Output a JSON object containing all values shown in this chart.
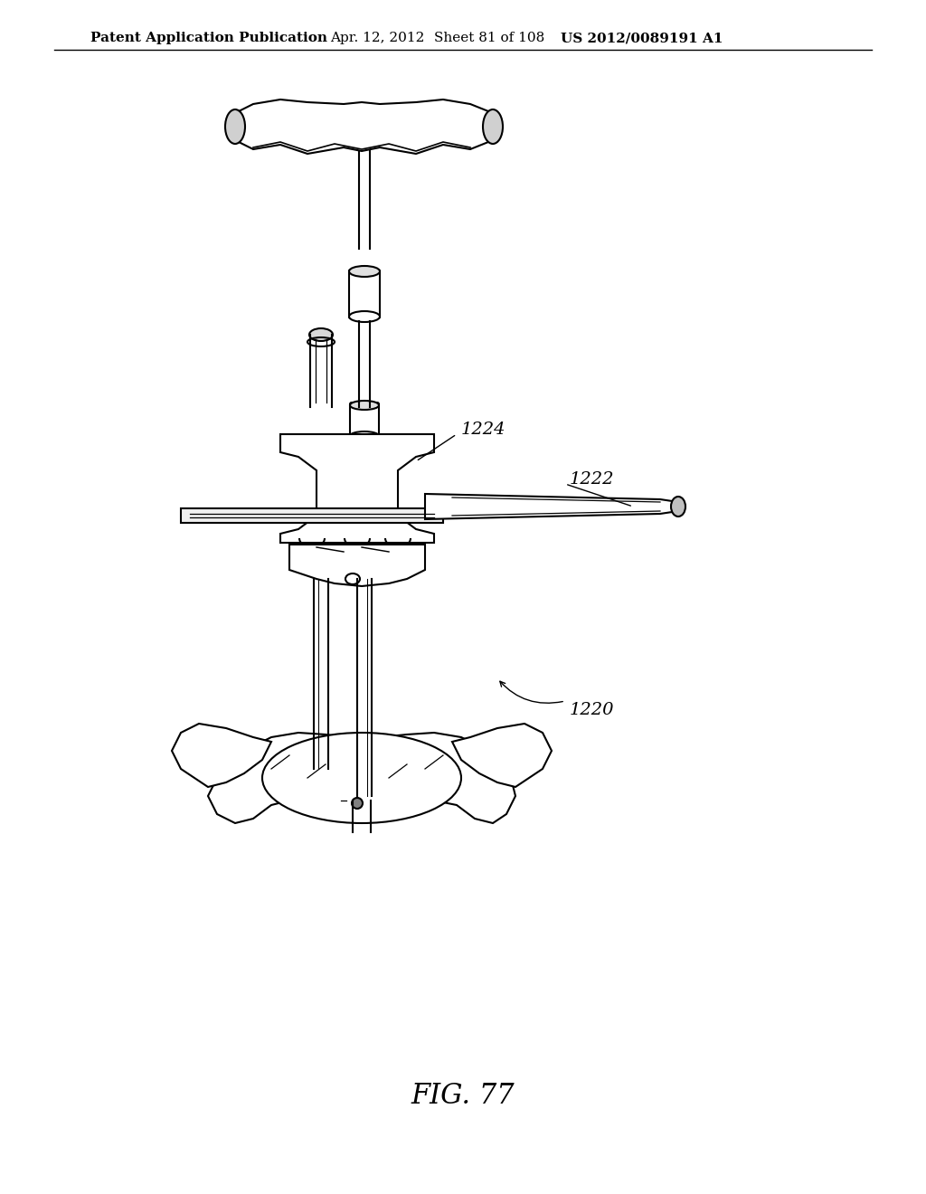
{
  "bg_color": "#ffffff",
  "header_text": "Patent Application Publication",
  "header_date": "Apr. 12, 2012",
  "header_sheet": "Sheet 81 of 108",
  "header_patent": "US 2012/0089191 A1",
  "fig_label": "FIG. 77",
  "label_1220": "1220",
  "label_1222": "1222",
  "label_1224": "1224",
  "line_color": "#000000",
  "line_width": 1.5,
  "fig_label_fontsize": 22,
  "header_fontsize": 11
}
